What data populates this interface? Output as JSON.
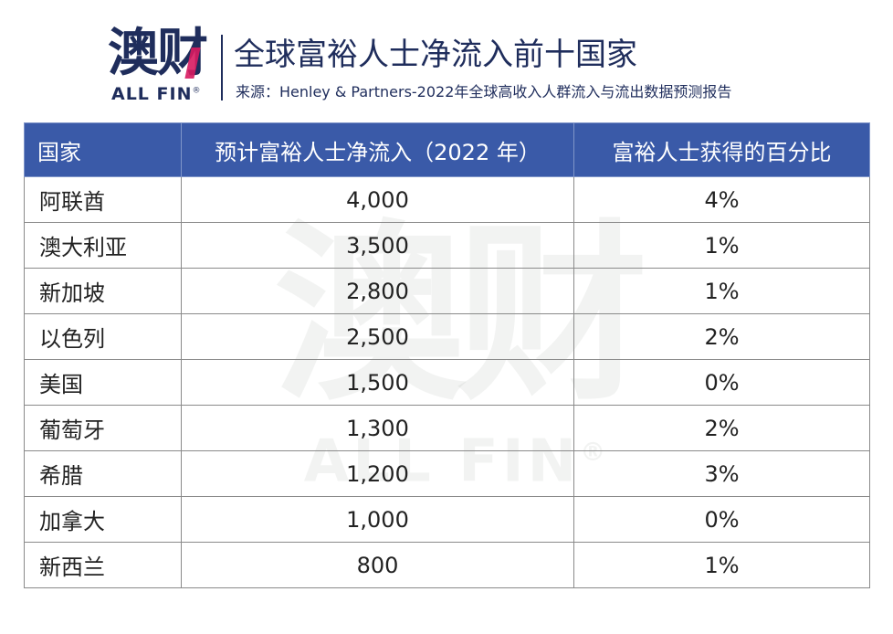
{
  "logo": {
    "cn": "澳财",
    "en": "ALL FIN",
    "reg": "®"
  },
  "header": {
    "title": "全球富裕人士净流入前十国家",
    "source": "来源：Henley & Partners-2022年全球高收入人群流入与流出数据预测报告"
  },
  "table": {
    "columns": [
      "国家",
      "预计富裕人士净流入（2022 年）",
      "富裕人士获得的百分比"
    ],
    "rows": [
      {
        "country": "阿联酋",
        "inflow": "4,000",
        "percent": "4%"
      },
      {
        "country": "澳大利亚",
        "inflow": "3,500",
        "percent": "1%"
      },
      {
        "country": "新加坡",
        "inflow": "2,800",
        "percent": "1%"
      },
      {
        "country": "以色列",
        "inflow": "2,500",
        "percent": "2%"
      },
      {
        "country": "美国",
        "inflow": "1,500",
        "percent": "0%"
      },
      {
        "country": "葡萄牙",
        "inflow": "1,300",
        "percent": "2%"
      },
      {
        "country": "希腊",
        "inflow": "1,200",
        "percent": "3%"
      },
      {
        "country": "加拿大",
        "inflow": "1,000",
        "percent": "0%"
      },
      {
        "country": "新西兰",
        "inflow": "800",
        "percent": "1%"
      }
    ]
  },
  "watermark": {
    "cn": "澳财",
    "en": "ALL FIN",
    "reg": "®"
  },
  "colors": {
    "brand": "#1f2d5c",
    "accent": "#d81b60",
    "header_bg": "#3a5aa8"
  }
}
